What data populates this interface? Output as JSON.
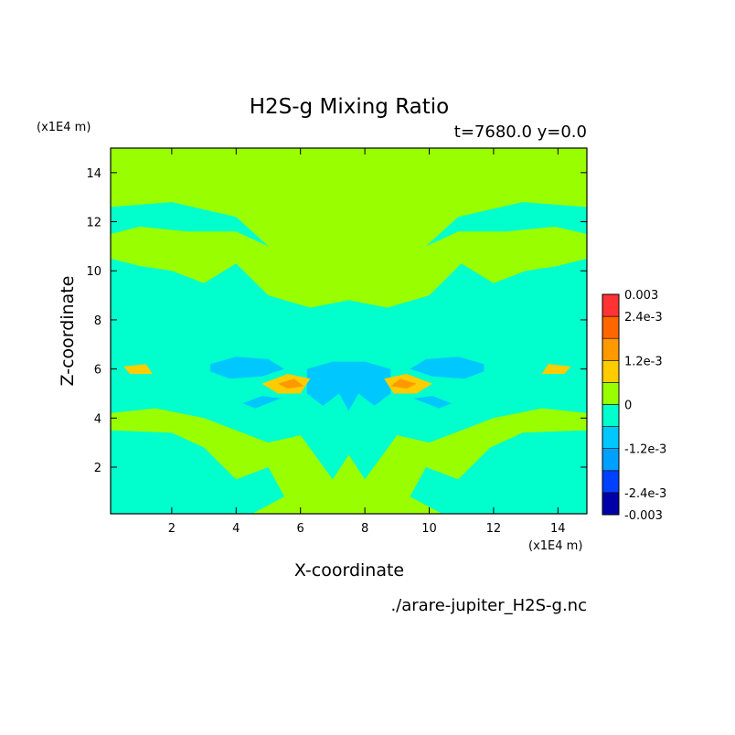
{
  "chart_data": {
    "type": "heatmap",
    "title": "H2S-g Mixing Ratio",
    "subtitle": "t=7680.0 y=0.0",
    "xlabel": "X-coordinate",
    "ylabel": "Z-coordinate",
    "x_unit": "(x1E4 m)",
    "y_unit": "(x1E4 m)",
    "xlim": [
      0.1,
      14.9
    ],
    "ylim": [
      0.1,
      15.0
    ],
    "x_ticks": [
      2,
      4,
      6,
      8,
      10,
      12,
      14
    ],
    "y_ticks": [
      2,
      4,
      6,
      8,
      10,
      12,
      14
    ],
    "footer": "./arare-jupiter_H2S-g.nc",
    "colorbar": {
      "levels": [
        -0.003,
        -0.0024,
        -0.0018,
        -0.0012,
        -0.0006,
        0,
        0.0006,
        0.0012,
        0.0018,
        0.0024,
        0.003
      ],
      "colors": [
        "#0000a8",
        "#0040ff",
        "#00a0ff",
        "#00c8ff",
        "#00ffcc",
        "#99ff00",
        "#ffcc00",
        "#ff9900",
        "#ff6600",
        "#ff3333"
      ],
      "tick_labels": [
        {
          "value": 0.003,
          "label": "0.003"
        },
        {
          "value": 0.0024,
          "label": "2.4e-3"
        },
        {
          "value": 0.0012,
          "label": "1.2e-3"
        },
        {
          "value": 0,
          "label": "0"
        },
        {
          "value": -0.0012,
          "label": "-1.2e-3"
        },
        {
          "value": -0.0024,
          "label": "-2.4e-3"
        },
        {
          "value": -0.003,
          "label": "-0.003"
        }
      ]
    },
    "regions": [
      {
        "name": "upper-background",
        "value": 0.0002,
        "polygon": [
          [
            0.1,
            15.0
          ],
          [
            14.9,
            15.0
          ],
          [
            14.9,
            0.1
          ],
          [
            0.1,
            0.1
          ]
        ]
      },
      {
        "name": "central-plume",
        "value": -0.0003,
        "polygon": [
          [
            0.1,
            10.5
          ],
          [
            1.0,
            10.2
          ],
          [
            2.0,
            10.0
          ],
          [
            3.0,
            9.5
          ],
          [
            4.0,
            10.3
          ],
          [
            5.0,
            9.0
          ],
          [
            6.3,
            8.5
          ],
          [
            7.5,
            8.8
          ],
          [
            8.7,
            8.5
          ],
          [
            10.0,
            9.0
          ],
          [
            11.0,
            10.3
          ],
          [
            12.0,
            9.5
          ],
          [
            13.0,
            10.0
          ],
          [
            14.0,
            10.2
          ],
          [
            14.9,
            10.5
          ],
          [
            14.9,
            4.2
          ],
          [
            13.5,
            4.4
          ],
          [
            12.0,
            4.0
          ],
          [
            11.0,
            3.5
          ],
          [
            10.0,
            3.0
          ],
          [
            9.0,
            3.3
          ],
          [
            8.0,
            1.5
          ],
          [
            7.5,
            2.5
          ],
          [
            7.0,
            1.5
          ],
          [
            6.0,
            3.3
          ],
          [
            5.0,
            3.0
          ],
          [
            4.0,
            3.5
          ],
          [
            3.0,
            4.0
          ],
          [
            1.5,
            4.4
          ],
          [
            0.1,
            4.2
          ]
        ]
      },
      {
        "name": "lower-left-band",
        "value": -0.0003,
        "polygon": [
          [
            0.1,
            3.5
          ],
          [
            2.0,
            3.4
          ],
          [
            3.0,
            2.8
          ],
          [
            4.0,
            1.5
          ],
          [
            5.0,
            2.0
          ],
          [
            5.5,
            0.8
          ],
          [
            4.5,
            0.1
          ],
          [
            0.1,
            0.1
          ]
        ]
      },
      {
        "name": "lower-right-band",
        "value": -0.0003,
        "polygon": [
          [
            14.9,
            3.5
          ],
          [
            12.9,
            3.4
          ],
          [
            11.9,
            2.8
          ],
          [
            10.9,
            1.5
          ],
          [
            9.9,
            2.0
          ],
          [
            9.4,
            0.8
          ],
          [
            10.4,
            0.1
          ],
          [
            14.9,
            0.1
          ]
        ]
      },
      {
        "name": "upper-left-streak",
        "value": -0.0003,
        "polygon": [
          [
            0.1,
            12.6
          ],
          [
            2.0,
            12.8
          ],
          [
            4.0,
            12.2
          ],
          [
            5.0,
            11.0
          ],
          [
            4.0,
            11.6
          ],
          [
            2.5,
            11.6
          ],
          [
            1.0,
            11.8
          ],
          [
            0.1,
            11.5
          ]
        ]
      },
      {
        "name": "upper-right-streak",
        "value": -0.0003,
        "polygon": [
          [
            14.9,
            12.6
          ],
          [
            12.9,
            12.8
          ],
          [
            10.9,
            12.2
          ],
          [
            9.9,
            11.0
          ],
          [
            10.9,
            11.6
          ],
          [
            12.4,
            11.6
          ],
          [
            13.9,
            11.8
          ],
          [
            14.9,
            11.5
          ]
        ]
      },
      {
        "name": "center-dome",
        "value": -0.0009,
        "polygon": [
          [
            6.2,
            6.0
          ],
          [
            7.0,
            6.3
          ],
          [
            8.0,
            6.3
          ],
          [
            8.8,
            6.0
          ],
          [
            8.8,
            5.0
          ],
          [
            8.3,
            4.5
          ],
          [
            7.8,
            5.0
          ],
          [
            7.5,
            4.3
          ],
          [
            7.2,
            5.0
          ],
          [
            6.7,
            4.5
          ],
          [
            6.2,
            5.0
          ]
        ]
      },
      {
        "name": "left-lens",
        "value": -0.0009,
        "polygon": [
          [
            3.2,
            6.2
          ],
          [
            4.0,
            6.5
          ],
          [
            5.0,
            6.4
          ],
          [
            5.5,
            6.0
          ],
          [
            4.8,
            5.7
          ],
          [
            3.8,
            5.6
          ],
          [
            3.2,
            5.9
          ]
        ]
      },
      {
        "name": "right-lens",
        "value": -0.0009,
        "polygon": [
          [
            11.7,
            6.2
          ],
          [
            10.9,
            6.5
          ],
          [
            9.9,
            6.4
          ],
          [
            9.4,
            6.0
          ],
          [
            10.1,
            5.7
          ],
          [
            11.1,
            5.6
          ],
          [
            11.7,
            5.9
          ]
        ]
      },
      {
        "name": "left-lower-streak",
        "value": -0.0009,
        "polygon": [
          [
            4.2,
            4.6
          ],
          [
            4.8,
            4.9
          ],
          [
            5.4,
            4.8
          ],
          [
            4.6,
            4.4
          ]
        ]
      },
      {
        "name": "right-lower-streak",
        "value": -0.0009,
        "polygon": [
          [
            10.7,
            4.6
          ],
          [
            10.1,
            4.9
          ],
          [
            9.5,
            4.8
          ],
          [
            10.3,
            4.4
          ]
        ]
      },
      {
        "name": "left-wedge-outer",
        "value": 0.0009,
        "polygon": [
          [
            4.8,
            5.4
          ],
          [
            5.6,
            5.8
          ],
          [
            6.3,
            5.6
          ],
          [
            6.0,
            5.0
          ],
          [
            5.3,
            5.0
          ]
        ]
      },
      {
        "name": "left-wedge-inner",
        "value": 0.0015,
        "polygon": [
          [
            5.3,
            5.4
          ],
          [
            5.8,
            5.6
          ],
          [
            6.1,
            5.3
          ],
          [
            5.6,
            5.2
          ]
        ]
      },
      {
        "name": "right-wedge-outer",
        "value": 0.0009,
        "polygon": [
          [
            10.1,
            5.4
          ],
          [
            9.3,
            5.8
          ],
          [
            8.6,
            5.6
          ],
          [
            8.9,
            5.0
          ],
          [
            9.6,
            5.0
          ]
        ]
      },
      {
        "name": "right-wedge-inner",
        "value": 0.0015,
        "polygon": [
          [
            9.6,
            5.4
          ],
          [
            9.1,
            5.6
          ],
          [
            8.8,
            5.3
          ],
          [
            9.3,
            5.2
          ]
        ]
      },
      {
        "name": "left-edge-spot",
        "value": 0.0009,
        "polygon": [
          [
            0.5,
            6.1
          ],
          [
            1.2,
            6.2
          ],
          [
            1.4,
            5.8
          ],
          [
            0.7,
            5.8
          ]
        ]
      },
      {
        "name": "right-edge-spot",
        "value": 0.0009,
        "polygon": [
          [
            14.4,
            6.1
          ],
          [
            13.7,
            6.2
          ],
          [
            13.5,
            5.8
          ],
          [
            14.2,
            5.8
          ]
        ]
      }
    ]
  }
}
